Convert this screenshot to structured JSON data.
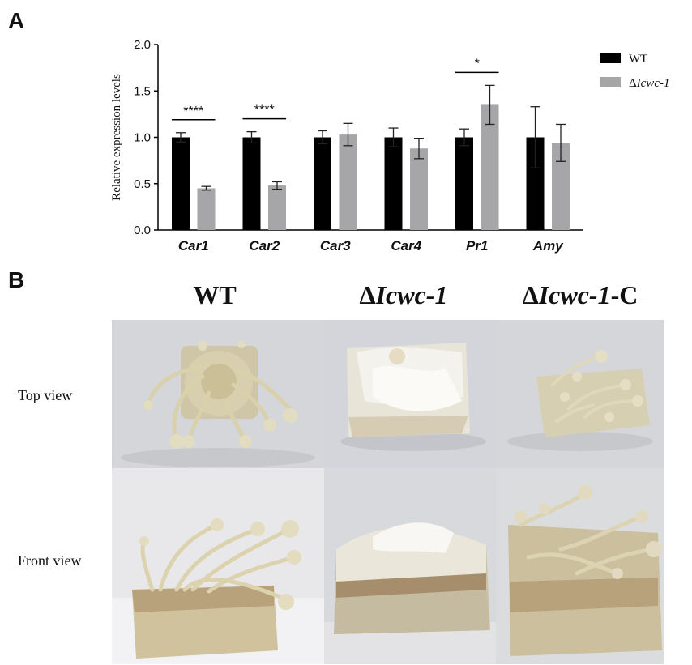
{
  "panel_a_label": "A",
  "panel_b_label": "B",
  "chart_data": {
    "type": "bar",
    "ylabel": "Relative expression levels",
    "xlabel": "",
    "ylim": [
      0,
      2.0
    ],
    "yticks": [
      "0.0",
      "0.5",
      "1.0",
      "1.5",
      "2.0"
    ],
    "categories": [
      "Car1",
      "Car2",
      "Car3",
      "Car4",
      "Pr1",
      "Amy"
    ],
    "series": [
      {
        "name": "WT",
        "color": "#000000",
        "values": [
          1.0,
          1.0,
          1.0,
          1.0,
          1.0,
          1.0
        ],
        "errors": [
          0.05,
          0.06,
          0.07,
          0.1,
          0.09,
          0.33
        ]
      },
      {
        "name": "ΔIcwc-1",
        "color": "#a6a6a8",
        "values": [
          0.45,
          0.48,
          1.03,
          0.88,
          1.35,
          0.94
        ],
        "errors": [
          0.02,
          0.04,
          0.12,
          0.11,
          0.21,
          0.2
        ]
      }
    ],
    "significance": [
      {
        "category": "Car1",
        "label": "****"
      },
      {
        "category": "Car2",
        "label": "****"
      },
      {
        "category": "Pr1",
        "label": "*"
      }
    ],
    "legend_position": "top-right",
    "grid": false
  },
  "panel_b": {
    "columns": [
      {
        "prefix": "",
        "italic": "",
        "text": "WT"
      },
      {
        "prefix": "Δ",
        "italic": "Icwc-1",
        "text": ""
      },
      {
        "prefix": "Δ",
        "italic": "Icwc-1",
        "text": "-C"
      }
    ],
    "rows": [
      "Top view",
      "Front view"
    ]
  }
}
